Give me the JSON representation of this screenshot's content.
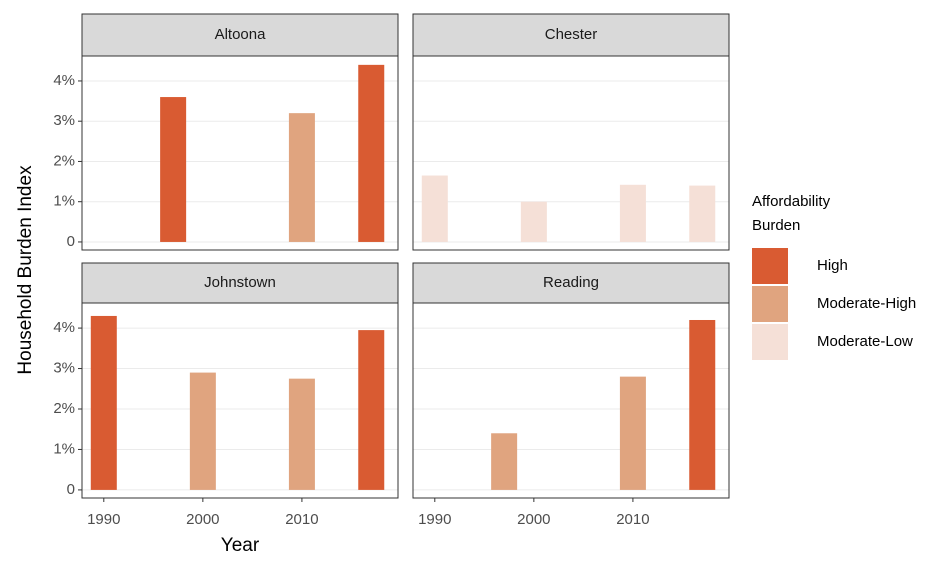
{
  "chart_data": {
    "type": "bar",
    "xlabel": "Year",
    "ylabel": "Household Burden Index",
    "legend_title": "Affordability\nBurden",
    "series": [
      {
        "name": "High",
        "color": "#d95b32"
      },
      {
        "name": "Moderate-High",
        "color": "#e0a47f"
      },
      {
        "name": "Moderate-Low",
        "color": "#f5e0d7"
      }
    ],
    "xlim": [
      1987.8,
      2019.7
    ],
    "xticks": [
      1990,
      2000,
      2010
    ],
    "ylim": [
      -0.2,
      4.62
    ],
    "yticks": [
      0,
      {
        "value": 1,
        "label": "1%"
      },
      {
        "value": 2,
        "label": "2%"
      },
      {
        "value": 3,
        "label": "3%"
      },
      {
        "value": 4,
        "label": "4%"
      }
    ],
    "grid": true,
    "panels": [
      {
        "title": "Altoona",
        "x": [
          1997,
          2010,
          2017
        ],
        "values": [
          3.6,
          3.2,
          4.4
        ],
        "colors": [
          "#d95b32",
          "#e0a47f",
          "#d95b32"
        ]
      },
      {
        "title": "Chester",
        "x": [
          1990,
          2000,
          2010,
          2017
        ],
        "values": [
          1.65,
          1.0,
          1.42,
          1.4
        ],
        "colors": [
          "#f5e0d7",
          "#f5e0d7",
          "#f5e0d7",
          "#f5e0d7"
        ]
      },
      {
        "title": "Johnstown",
        "x": [
          1990,
          2000,
          2010,
          2017
        ],
        "values": [
          4.3,
          2.9,
          2.75,
          3.95
        ],
        "colors": [
          "#d95b32",
          "#e0a47f",
          "#e0a47f",
          "#d95b32"
        ]
      },
      {
        "title": "Reading",
        "x": [
          1997,
          2010,
          2017
        ],
        "values": [
          1.4,
          2.8,
          4.2
        ],
        "colors": [
          "#e0a47f",
          "#e0a47f",
          "#d95b32"
        ]
      }
    ]
  }
}
